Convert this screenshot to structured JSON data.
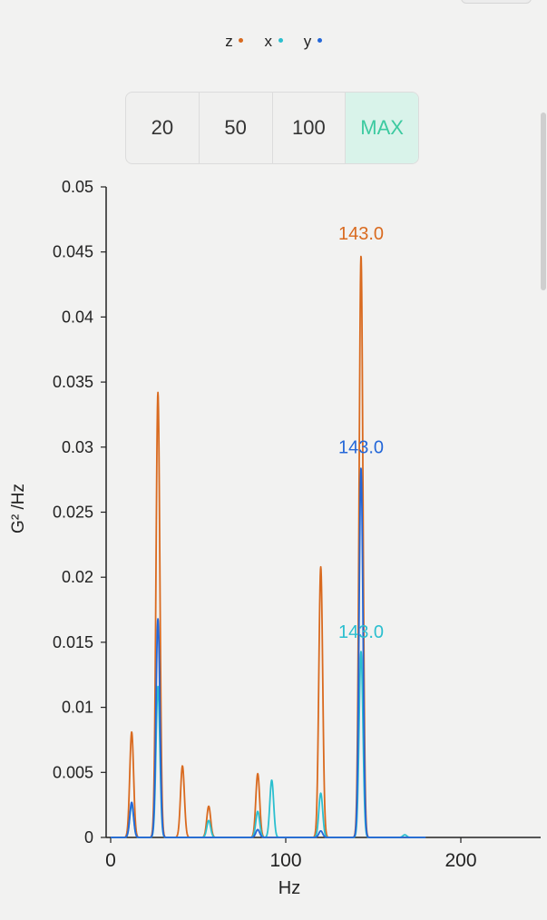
{
  "legend": [
    {
      "label": "z",
      "color": "#d96a1f"
    },
    {
      "label": "x",
      "color": "#2bbfcf"
    },
    {
      "label": "y",
      "color": "#2467d8"
    }
  ],
  "range_buttons": [
    {
      "label": "20",
      "active": false
    },
    {
      "label": "50",
      "active": false
    },
    {
      "label": "100",
      "active": false
    },
    {
      "label": "MAX",
      "active": true
    }
  ],
  "chart_data": {
    "type": "line",
    "title": "",
    "xlabel": "Hz",
    "ylabel": "G² /Hz",
    "xlim": [
      0,
      250
    ],
    "ylim": [
      0,
      0.05
    ],
    "x_ticks": [
      "0",
      "100",
      "200"
    ],
    "y_ticks": [
      "0",
      "0.005",
      "0.01",
      "0.015",
      "0.02",
      "0.025",
      "0.03",
      "0.035",
      "0.04",
      "0.045",
      "0.05"
    ],
    "grid": false,
    "series": [
      {
        "name": "z",
        "color": "#d96a1f",
        "peaks": [
          [
            12,
            0.0081
          ],
          [
            27,
            0.0342
          ],
          [
            41,
            0.0055
          ],
          [
            56,
            0.0024
          ],
          [
            84,
            0.0049
          ],
          [
            120,
            0.0208
          ],
          [
            143,
            0.0447
          ]
        ],
        "peak_label": "143.0"
      },
      {
        "name": "x",
        "color": "#2bbfcf",
        "peaks": [
          [
            12,
            0.0025
          ],
          [
            27,
            0.0116
          ],
          [
            56,
            0.0013
          ],
          [
            84,
            0.002
          ],
          [
            92,
            0.0044
          ],
          [
            120,
            0.0034
          ],
          [
            143,
            0.0143
          ],
          [
            168,
            0.0002
          ]
        ],
        "peak_label": "143.0"
      },
      {
        "name": "y",
        "color": "#2467d8",
        "peaks": [
          [
            12,
            0.0027
          ],
          [
            27,
            0.0168
          ],
          [
            84,
            0.0006
          ],
          [
            120,
            0.0005
          ],
          [
            143,
            0.0284
          ]
        ],
        "peak_label": "143.0"
      }
    ]
  }
}
